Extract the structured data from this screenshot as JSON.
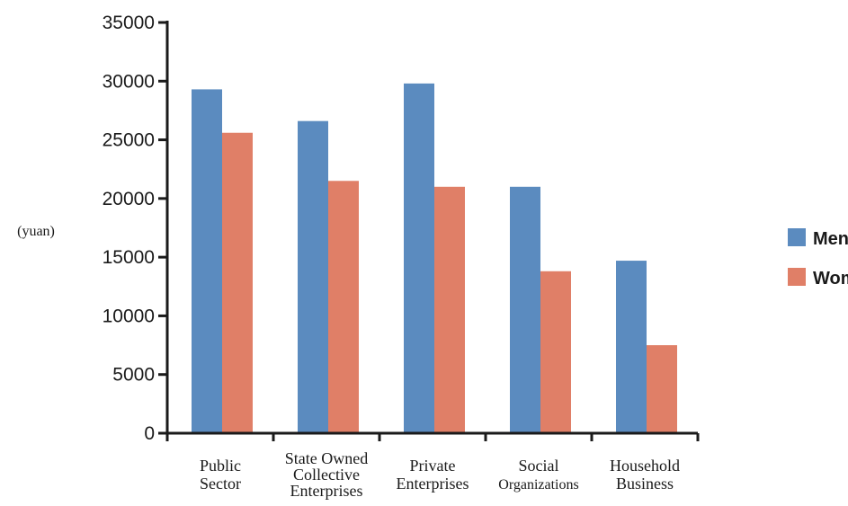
{
  "chart_data": {
    "type": "bar",
    "title": "",
    "xlabel": "",
    "ylabel": "(yuan)",
    "ylim": [
      0,
      35000
    ],
    "yticks": [
      0,
      5000,
      10000,
      15000,
      20000,
      25000,
      30000,
      35000
    ],
    "grid": false,
    "legend_position": "right",
    "categories": [
      [
        "Public",
        "Sector"
      ],
      [
        "State Owned",
        "Collective",
        "Enterprises"
      ],
      [
        "Private",
        "Enterprises"
      ],
      [
        "Social",
        "Organizations"
      ],
      [
        "Household",
        "Business"
      ]
    ],
    "series": [
      {
        "name": "Men",
        "color": "#5b8bbf",
        "values": [
          29300,
          26600,
          29800,
          21000,
          14700
        ]
      },
      {
        "name": "Women",
        "color": "#e07f67",
        "values": [
          25600,
          21500,
          21000,
          13800,
          7500
        ]
      }
    ]
  }
}
